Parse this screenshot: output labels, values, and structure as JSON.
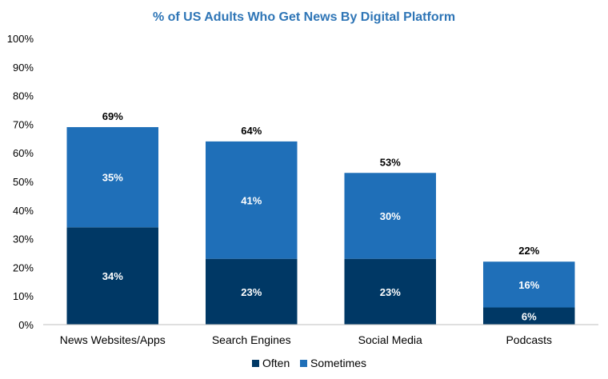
{
  "chart_data": {
    "type": "bar",
    "stacked": true,
    "title": "% of US Adults Who Get News By Digital Platform",
    "categories": [
      "News Websites/Apps",
      "Search Engines",
      "Social Media",
      "Podcasts"
    ],
    "series": [
      {
        "name": "Often",
        "values": [
          34,
          23,
          23,
          6
        ],
        "labels": [
          "34%",
          "23%",
          "23%",
          "6%"
        ]
      },
      {
        "name": "Sometimes",
        "values": [
          35,
          41,
          30,
          16
        ],
        "labels": [
          "35%",
          "41%",
          "30%",
          "16%"
        ]
      }
    ],
    "totals": [
      69,
      64,
      53,
      22
    ],
    "total_labels": [
      "69%",
      "64%",
      "53%",
      "22%"
    ],
    "ylim": [
      0,
      100
    ],
    "yticks": [
      0,
      10,
      20,
      30,
      40,
      50,
      60,
      70,
      80,
      90,
      100
    ],
    "ytick_labels": [
      "0%",
      "10%",
      "20%",
      "30%",
      "40%",
      "50%",
      "60%",
      "70%",
      "80%",
      "90%",
      "100%"
    ],
    "grid": false,
    "legend_position": "bottom",
    "colors": {
      "title": "#2e75b6",
      "often": "#003865",
      "sometimes": "#1f6fb8",
      "axis": "#bfbfbf"
    }
  }
}
